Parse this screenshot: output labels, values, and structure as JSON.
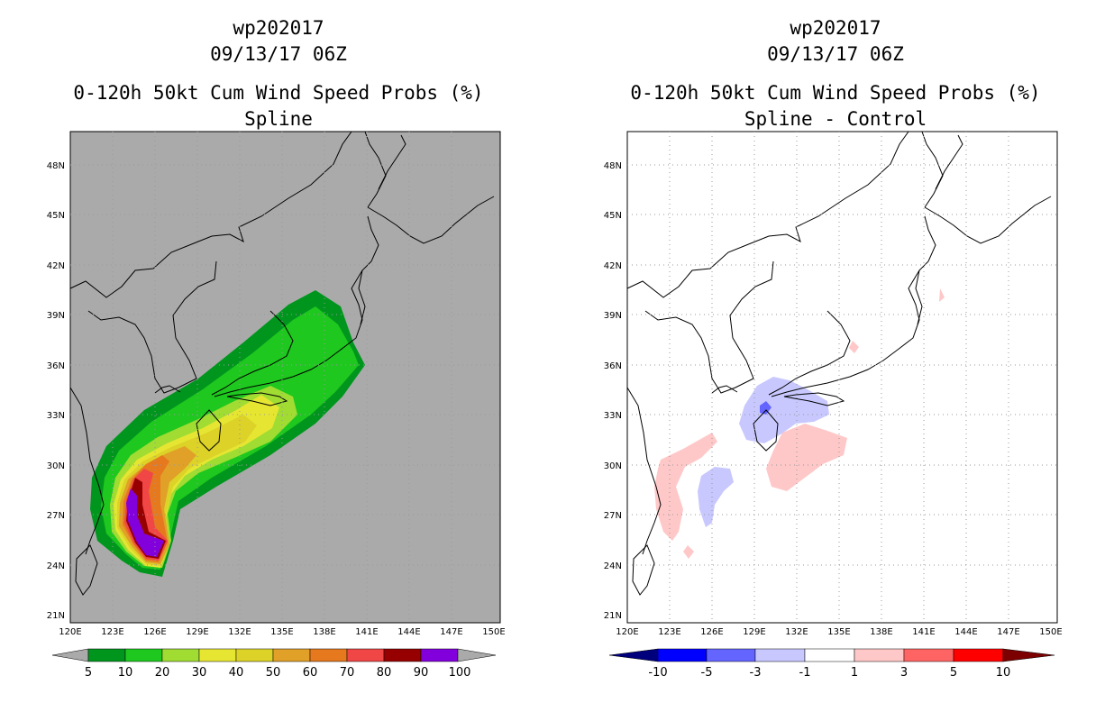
{
  "colors": {
    "land_bg": "#aaaaaa",
    "diff_bg": "#ffffff",
    "grid": "#999999",
    "coast": "#000000",
    "prob_levels": [
      "#00961e",
      "#1ec81e",
      "#a0dc32",
      "#e6e632",
      "#dcd228",
      "#e1a028",
      "#e6781e",
      "#f04646",
      "#960000",
      "#8200dc"
    ],
    "diff_levels": [
      "#00007d",
      "#0000ff",
      "#6464ff",
      "#c8c8ff",
      "#ffffff",
      "#ffc8c8",
      "#ff6464",
      "#ff0000",
      "#7d0000"
    ]
  },
  "map": {
    "lat_labels": [
      "48N",
      "45N",
      "42N",
      "39N",
      "36N",
      "33N",
      "30N",
      "27N",
      "24N",
      "21N"
    ],
    "lon_labels": [
      "120E",
      "123E",
      "126E",
      "129E",
      "132E",
      "135E",
      "138E",
      "141E",
      "144E",
      "147E",
      "150E"
    ]
  },
  "left_panel": {
    "storm": "wp202017",
    "datetime": "09/13/17 06Z",
    "product": "0-120h 50kt Cum Wind Speed Probs (%)",
    "subtitle": "Spline",
    "colorbar_labels": [
      "5",
      "10",
      "20",
      "30",
      "40",
      "50",
      "60",
      "70",
      "80",
      "90",
      "100"
    ]
  },
  "right_panel": {
    "storm": "wp202017",
    "datetime": "09/13/17 06Z",
    "product": "0-120h 50kt Cum Wind Speed Probs (%)",
    "subtitle": "Spline - Control",
    "colorbar_labels": [
      "-10",
      "-5",
      "-3",
      "-1",
      "1",
      "3",
      "5",
      "10"
    ]
  }
}
